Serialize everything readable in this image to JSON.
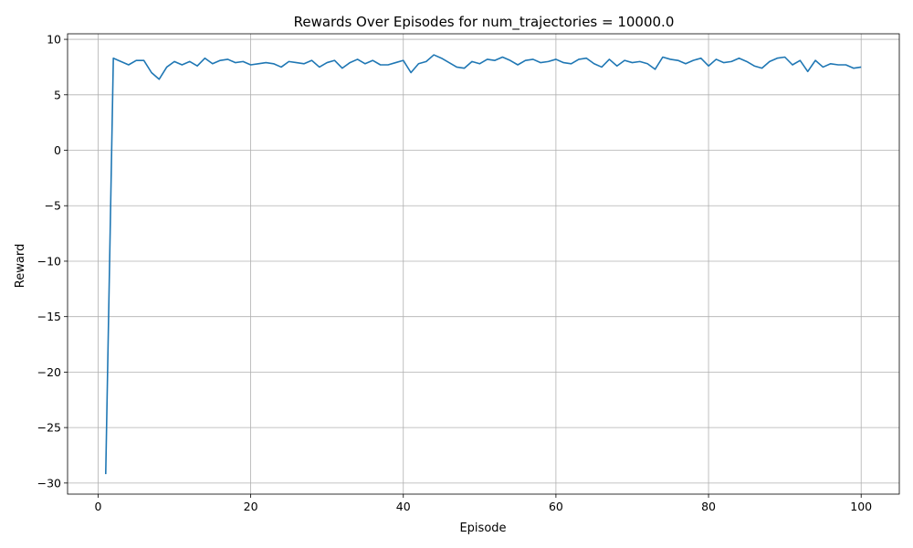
{
  "chart_data": {
    "type": "line",
    "title": "Rewards Over Episodes for num_trajectories = 10000.0",
    "xlabel": "Episode",
    "ylabel": "Reward",
    "xlim": [
      -4,
      105
    ],
    "ylim": [
      -31,
      10.5
    ],
    "xticks": [
      0,
      20,
      40,
      60,
      80,
      100
    ],
    "yticks": [
      10,
      5,
      0,
      -5,
      -10,
      -15,
      -20,
      -25,
      -30
    ],
    "xtick_labels": [
      "0",
      "20",
      "40",
      "60",
      "80",
      "100"
    ],
    "ytick_labels": [
      "10",
      "5",
      "0",
      "−5",
      "−10",
      "−15",
      "−20",
      "−25",
      "−30"
    ],
    "grid": true,
    "line_color": "#1f77b4",
    "series": [
      {
        "x": [
          1,
          2,
          3,
          4,
          5,
          6,
          7,
          8,
          9,
          10,
          11,
          12,
          13,
          14,
          15,
          16,
          17,
          18,
          19,
          20,
          21,
          22,
          23,
          24,
          25,
          26,
          27,
          28,
          29,
          30,
          31,
          32,
          33,
          34,
          35,
          36,
          37,
          38,
          39,
          40,
          41,
          42,
          43,
          44,
          45,
          46,
          47,
          48,
          49,
          50,
          51,
          52,
          53,
          54,
          55,
          56,
          57,
          58,
          59,
          60,
          61,
          62,
          63,
          64,
          65,
          66,
          67,
          68,
          69,
          70,
          71,
          72,
          73,
          74,
          75,
          76,
          77,
          78,
          79,
          80,
          81,
          82,
          83,
          84,
          85,
          86,
          87,
          88,
          89,
          90,
          91,
          92,
          93,
          94,
          95,
          96,
          97,
          98,
          99,
          100
        ],
        "values": [
          -29.2,
          8.3,
          8.0,
          7.7,
          8.1,
          8.1,
          7.0,
          6.4,
          7.5,
          8.0,
          7.7,
          8.0,
          7.6,
          8.3,
          7.8,
          8.1,
          8.2,
          7.9,
          8.0,
          7.7,
          7.8,
          7.9,
          7.8,
          7.5,
          8.0,
          7.9,
          7.8,
          8.1,
          7.5,
          7.9,
          8.1,
          7.4,
          7.9,
          8.2,
          7.8,
          8.1,
          7.7,
          7.7,
          7.9,
          8.1,
          7.0,
          7.8,
          8.0,
          8.6,
          8.3,
          7.9,
          7.5,
          7.4,
          8.0,
          7.8,
          8.2,
          8.1,
          8.4,
          8.1,
          7.7,
          8.1,
          8.2,
          7.9,
          8.0,
          8.2,
          7.9,
          7.8,
          8.2,
          8.3,
          7.8,
          7.5,
          8.2,
          7.6,
          8.1,
          7.9,
          8.0,
          7.8,
          7.3,
          8.4,
          8.2,
          8.1,
          7.8,
          8.1,
          8.3,
          7.6,
          8.2,
          7.9,
          8.0,
          8.3,
          8.0,
          7.6,
          7.4,
          8.0,
          8.3,
          8.4,
          7.7,
          8.1,
          7.1,
          8.1,
          7.5,
          7.8,
          7.7,
          7.7,
          7.4,
          7.5
        ]
      }
    ]
  }
}
